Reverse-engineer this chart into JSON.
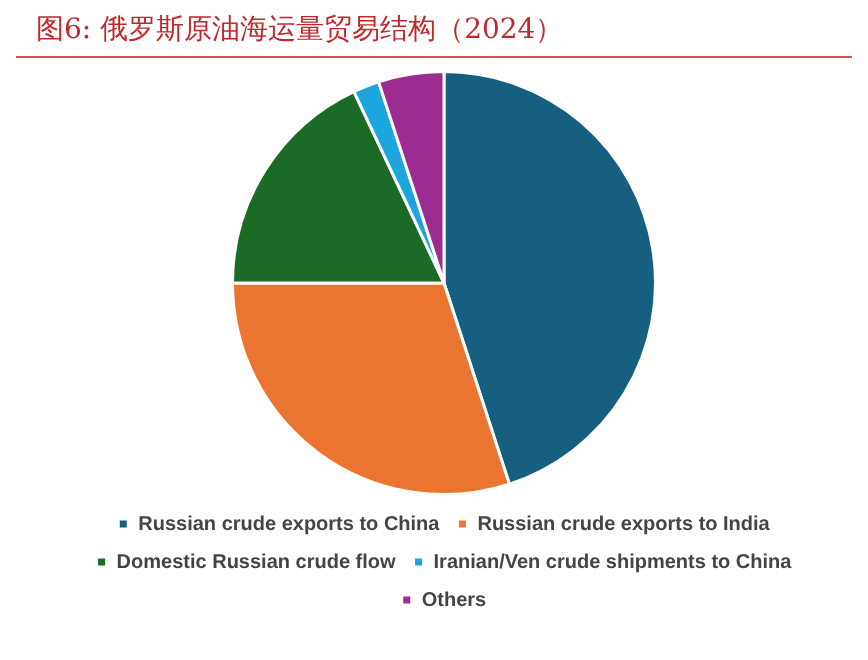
{
  "chart_data": {
    "type": "pie",
    "title": "图6:   俄罗斯原油海运量贸易结构（2024）",
    "categories": [
      "Russian crude exports to China",
      "Russian crude exports to India",
      "Domestic Russian crude flow",
      "Iranian/Ven crude shipments to China",
      "Others"
    ],
    "values": [
      45,
      30,
      18,
      2,
      5
    ],
    "colors": [
      "#165f80",
      "#ec7431",
      "#1b6b27",
      "#1ba7de",
      "#9b2c91"
    ],
    "legend": "bottom"
  }
}
